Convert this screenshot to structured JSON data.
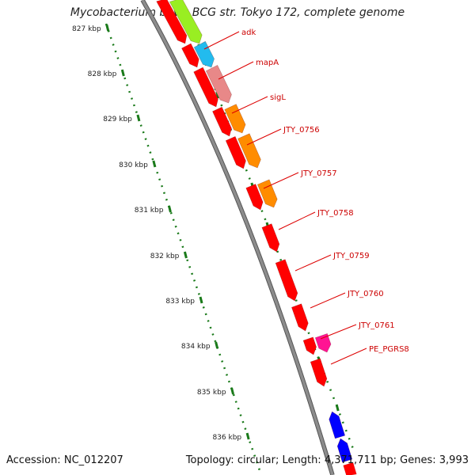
{
  "title": "Mycobacterium bovis BCG str. Tokyo 172, complete genome",
  "footer": {
    "accession_label": "Accession:",
    "accession": "NC_012207",
    "topology_label": "Topology:",
    "topology": "circular",
    "length_label": "Length:",
    "length": "4,371,711 bp",
    "genes_label": "Genes:",
    "genes": "3,993"
  },
  "ruler_ticks": [
    "827 kbp",
    "828 kbp",
    "829 kbp",
    "830 kbp",
    "831 kbp",
    "832 kbp",
    "833 kbp",
    "834 kbp",
    "835 kbp",
    "836 kbp"
  ],
  "gene_labels": [
    "adk",
    "mapA",
    "sigL",
    "JTY_0756",
    "JTY_0757",
    "JTY_0758",
    "JTY_0759",
    "JTY_0760",
    "JTY_0761",
    "PE_PGRS8"
  ],
  "colors": {
    "backbone": "#8c8c8c",
    "cds_forward": "#ff0000",
    "cds_reverse": "#0000ff",
    "label_line": "#dd0000",
    "label_text": "#cc0000",
    "ruler_dots": "#1a7a1a",
    "track_green": "#99ee22",
    "track_cyan": "#22bbee",
    "track_pink": "#e88888",
    "track_orange": "#ff8c00",
    "track_magenta": "#ff1493"
  }
}
